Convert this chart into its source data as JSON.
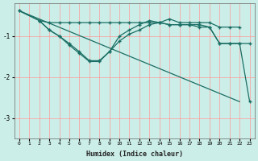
{
  "xlabel": "Humidex (Indice chaleur)",
  "background_color": "#cceee8",
  "grid_color": "#ff9999",
  "line_color": "#1a6e64",
  "xlim": [
    -0.5,
    23.5
  ],
  "ylim": [
    -3.5,
    -0.2
  ],
  "yticks": [
    -3,
    -2,
    -1
  ],
  "xticks": [
    0,
    1,
    2,
    3,
    4,
    5,
    6,
    7,
    8,
    9,
    10,
    11,
    12,
    13,
    14,
    15,
    16,
    17,
    18,
    19,
    20,
    21,
    22,
    23
  ],
  "line1_x": [
    0,
    2,
    3,
    4,
    5,
    6,
    7,
    8,
    9,
    10,
    11,
    12,
    13,
    14,
    15,
    16,
    17,
    18,
    19,
    20,
    21,
    22
  ],
  "line1_y": [
    -0.38,
    -0.62,
    -0.67,
    -0.67,
    -0.67,
    -0.67,
    -0.67,
    -0.67,
    -0.67,
    -0.67,
    -0.67,
    -0.67,
    -0.67,
    -0.67,
    -0.58,
    -0.67,
    -0.67,
    -0.67,
    -0.67,
    -0.78,
    -0.78,
    -0.78
  ],
  "line2_x": [
    2,
    3,
    4,
    5,
    6,
    7,
    8,
    9,
    10,
    11,
    12,
    13,
    14,
    15,
    16,
    17,
    18,
    19,
    20,
    21,
    22,
    23
  ],
  "line2_y": [
    -0.62,
    -0.85,
    -1.0,
    -1.18,
    -1.38,
    -1.6,
    -1.6,
    -1.38,
    -1.12,
    -0.95,
    -0.85,
    -0.72,
    -0.67,
    -0.72,
    -0.72,
    -0.72,
    -0.72,
    -0.78,
    -1.18,
    -1.18,
    -1.18,
    -2.6
  ],
  "line3_x": [
    0,
    2,
    3,
    4,
    5,
    6,
    7,
    8,
    9,
    10,
    11,
    12,
    13,
    14,
    15,
    16,
    17,
    18,
    19,
    20,
    21,
    22,
    23
  ],
  "line3_y": [
    -0.38,
    -0.62,
    -0.85,
    -1.0,
    -1.22,
    -1.42,
    -1.62,
    -1.62,
    -1.38,
    -1.0,
    -0.85,
    -0.72,
    -0.62,
    -0.67,
    -0.72,
    -0.72,
    -0.72,
    -0.78,
    -0.78,
    -1.18,
    -1.18,
    -1.18,
    -1.18
  ],
  "line4_x": [
    0,
    22
  ],
  "line4_y": [
    -0.38,
    -2.6
  ],
  "figsize": [
    3.2,
    2.0
  ],
  "dpi": 100
}
